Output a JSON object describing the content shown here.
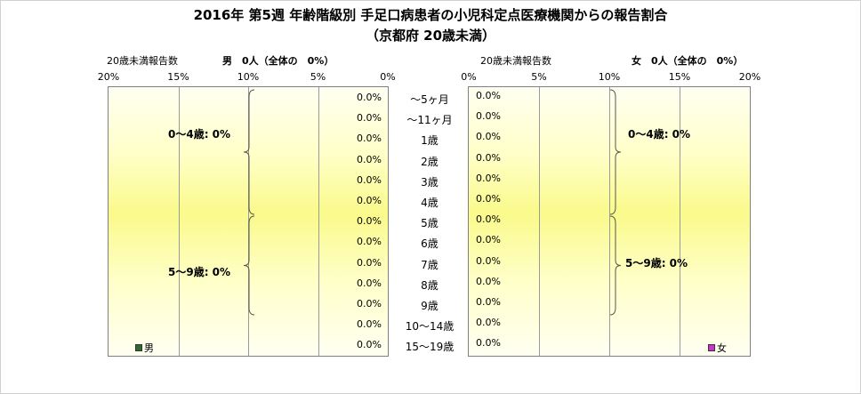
{
  "header": {
    "title_line1": "2016年 第5週 年齢階級別 手足口病患者の小児科定点医療機関からの報告割合",
    "title_line2": "（京都府 20歳未満）"
  },
  "left_panel": {
    "count_label": "20歳未満報告数",
    "summary": "男　0人（全体の　0%）",
    "legend": "男",
    "legend_color": "#2e6b2e",
    "ticks": [
      "20%",
      "15%",
      "10%",
      "5%",
      "0%"
    ],
    "brackets": [
      {
        "label": "0〜4歳: 0%"
      },
      {
        "label": "5〜9歳: 0%"
      }
    ]
  },
  "right_panel": {
    "count_label": "20歳未満報告数",
    "summary": "女　0人（全体の　0%）",
    "legend": "女",
    "legend_color": "#cc33cc",
    "ticks": [
      "0%",
      "5%",
      "10%",
      "15%",
      "20%"
    ],
    "brackets": [
      {
        "label": "0〜4歳: 0%"
      },
      {
        "label": "5〜9歳: 0%"
      }
    ]
  },
  "chart_data": [
    {
      "type": "bar",
      "orientation": "horizontal",
      "direction": "right-to-left",
      "categories": [
        "〜5ヶ月",
        "〜11ヶ月",
        "1歳",
        "2歳",
        "3歳",
        "4歳",
        "5歳",
        "6歳",
        "7歳",
        "8歳",
        "9歳",
        "10〜14歳",
        "15〜19歳"
      ],
      "series": [
        {
          "name": "男",
          "values": [
            0,
            0,
            0,
            0,
            0,
            0,
            0,
            0,
            0,
            0,
            0,
            0,
            0
          ]
        }
      ],
      "value_labels": [
        "0.0%",
        "0.0%",
        "0.0%",
        "0.0%",
        "0.0%",
        "0.0%",
        "0.0%",
        "0.0%",
        "0.0%",
        "0.0%",
        "0.0%",
        "0.0%",
        "0.0%"
      ],
      "xlim": [
        0,
        20
      ],
      "unit": "%",
      "grid": true,
      "legend": "bottom-left"
    },
    {
      "type": "bar",
      "orientation": "horizontal",
      "direction": "left-to-right",
      "categories": [
        "〜5ヶ月",
        "〜11ヶ月",
        "1歳",
        "2歳",
        "3歳",
        "4歳",
        "5歳",
        "6歳",
        "7歳",
        "8歳",
        "9歳",
        "10〜14歳",
        "15〜19歳"
      ],
      "series": [
        {
          "name": "女",
          "values": [
            0,
            0,
            0,
            0,
            0,
            0,
            0,
            0,
            0,
            0,
            0,
            0,
            0
          ]
        }
      ],
      "value_labels": [
        "0.0%",
        "0.0%",
        "0.0%",
        "0.0%",
        "0.0%",
        "0.0%",
        "0.0%",
        "0.0%",
        "0.0%",
        "0.0%",
        "0.0%",
        "0.0%",
        "0.0%"
      ],
      "xlim": [
        0,
        20
      ],
      "unit": "%",
      "grid": true,
      "legend": "bottom-right"
    }
  ]
}
